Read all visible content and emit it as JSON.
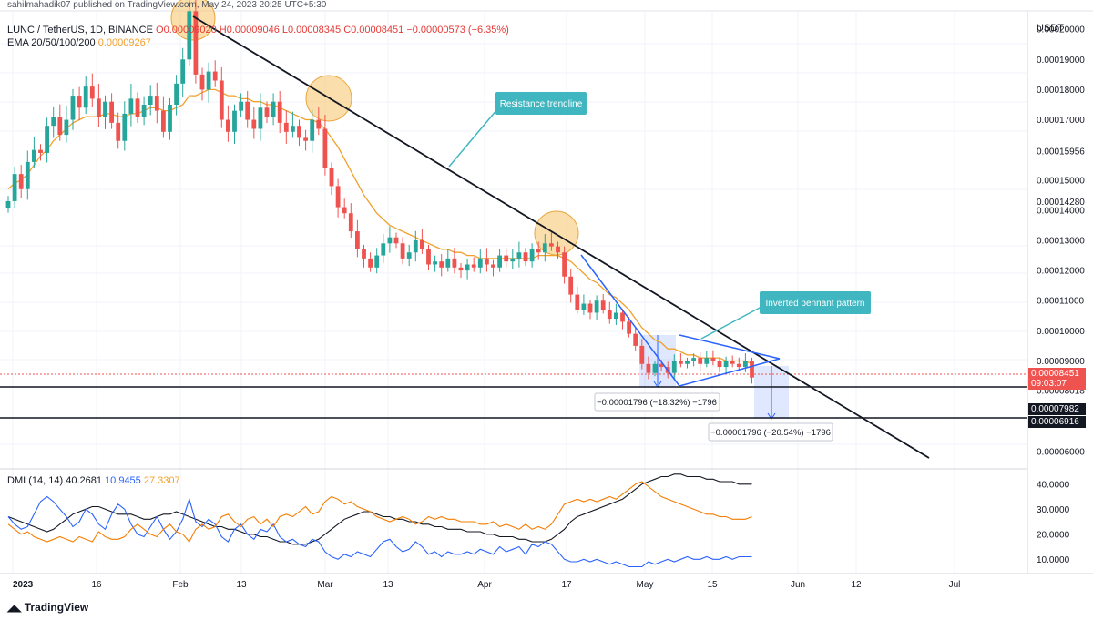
{
  "header": {
    "publisher": "sahilmahadik07 published on TradingView.com, May 24, 2023 20:25 UTC+5:30",
    "symbol": "LUNC / TetherUS, 1D, BINANCE",
    "open": "O0.00009020",
    "high": "H0.00009046",
    "low": "L0.00008345",
    "close": "C0.00008451",
    "change": "−0.00000573 (−6.35%)",
    "ema_label": "EMA 20/50/100/200",
    "ema_value": "0.00009267"
  },
  "axis_unit": "USDT",
  "price_tag": {
    "price": "0.00008451",
    "countdown": "09:03:07"
  },
  "level_tags": [
    "0.00007982",
    "0.00006916"
  ],
  "annotations": {
    "resistance": "Resistance trendline",
    "pennant": "Inverted pennant pattern",
    "measure1": "−0.00001796 (−18.32%) −1796",
    "measure2": "−0.00001796 (−20.54%) −1796"
  },
  "dmi": {
    "label": "DMI (14, 14)",
    "adx": "40.2681",
    "plus_di": "10.9455",
    "minus_di": "27.3307"
  },
  "footer_logo": "TradingView",
  "colors": {
    "up": "#26a69a",
    "down": "#ef5350",
    "ema": "#f2a02b",
    "adx": "#131722",
    "plus_di": "#2962ff",
    "minus_di": "#f57c00",
    "label_bg": "#3fb6c0"
  },
  "chart_data": {
    "type": "candlestick",
    "y_axis_ticks": [
      "0.00020000",
      "0.00019000",
      "0.00018000",
      "0.00017000",
      "0.00015956",
      "0.00015000",
      "0.00014280",
      "0.00014000",
      "0.00013000",
      "0.00012000",
      "0.00011000",
      "0.00010000",
      "0.00009000",
      "0.00008018",
      "0.00006000"
    ],
    "x_axis_ticks": [
      "2023",
      "16",
      "Feb",
      "13",
      "Mar",
      "13",
      "Apr",
      "17",
      "May",
      "15",
      "Jun",
      "12",
      "Jul"
    ],
    "dmi_axis_ticks": [
      "40.0000",
      "30.0000",
      "20.0000",
      "10.0000"
    ],
    "ylim": [
      5.45e-05,
      0.0002055
    ],
    "dmi_ylim": [
      5,
      45
    ],
    "closes": [
      0.000143,
      0.000152,
      0.000147,
      0.000156,
      0.00016,
      0.000159,
      0.000168,
      0.000171,
      0.000165,
      0.00017,
      0.000178,
      0.000174,
      0.000181,
      0.000177,
      0.000171,
      0.000176,
      0.000169,
      0.000163,
      0.000172,
      0.000177,
      0.000171,
      0.000175,
      0.000178,
      0.000173,
      0.000166,
      0.000175,
      0.000182,
      0.00019,
      0.000206,
      0.000185,
      0.00018,
      0.000186,
      0.000183,
      0.00017,
      0.000166,
      0.000173,
      0.000176,
      0.00017,
      0.000167,
      0.000174,
      0.000171,
      0.000176,
      0.000169,
      0.000166,
      0.000168,
      0.000164,
      0.000163,
      0.00017,
      0.000167,
      0.000154,
      0.000148,
      0.000141,
      0.000139,
      0.000133,
      0.000127,
      0.000124,
      0.000121,
      0.000125,
      0.000129,
      0.000131,
      0.000129,
      0.000124,
      0.000126,
      0.00013,
      0.000127,
      0.000122,
      0.000123,
      0.000121,
      0.000124,
      0.000121,
      0.00012,
      0.000122,
      0.000121,
      0.000124,
      0.000122,
      0.000121,
      0.000125,
      0.000123,
      0.000124,
      0.000126,
      0.000123,
      0.000127,
      0.000126,
      0.000129,
      0.000128,
      0.000126,
      0.000118,
      0.000112,
      0.000107,
      0.000109,
      0.000106,
      0.00011,
      0.000107,
      0.000104,
      0.000106,
      0.000103,
      9.9e-05,
      9.5e-05,
      8.9e-05,
      8.6e-05,
      8.9e-05,
      8.8e-05,
      8.6e-05,
      9e-05,
      8.9e-05,
      9e-05,
      9.1e-05,
      8.9e-05,
      9.1e-05,
      9e-05,
      8.8e-05,
      9e-05,
      8.9e-05,
      8.8e-05,
      9e-05,
      8.45e-05
    ],
    "ema20": [
      0.000147,
      0.000149,
      0.00015,
      0.000152,
      0.000155,
      0.000158,
      0.00016,
      0.000163,
      0.000165,
      0.000167,
      0.000169,
      0.00017,
      0.000171,
      0.000171,
      0.000171,
      0.000172,
      0.000172,
      0.000171,
      0.000171,
      0.000172,
      0.000172,
      0.000173,
      0.000174,
      0.000174,
      0.000173,
      0.000173,
      0.000174,
      0.000175,
      0.000178,
      0.000178,
      0.000179,
      0.00018,
      0.00018,
      0.000179,
      0.000178,
      0.000178,
      0.000177,
      0.000177,
      0.000176,
      0.000176,
      0.000175,
      0.000175,
      0.000174,
      0.000173,
      0.000172,
      0.000171,
      0.00017,
      0.00017,
      0.000169,
      0.000167,
      0.000164,
      0.000161,
      0.000157,
      0.000153,
      0.000149,
      0.000145,
      0.000142,
      0.000139,
      0.000137,
      0.000135,
      0.000134,
      0.000133,
      0.000132,
      0.000131,
      0.00013,
      0.000129,
      0.000128,
      0.000127,
      0.000127,
      0.000126,
      0.000126,
      0.000125,
      0.000125,
      0.000124,
      0.000124,
      0.000124,
      0.000124,
      0.000124,
      0.000124,
      0.000124,
      0.000124,
      0.000124,
      0.000125,
      0.000125,
      0.000125,
      0.000125,
      0.000124,
      0.000123,
      0.000121,
      0.000119,
      0.000117,
      0.000116,
      0.000114,
      0.000112,
      0.000111,
      0.000109,
      0.000107,
      0.000104,
      0.000101,
      9.9e-05,
      9.7e-05,
      9.6e-05,
      9.4e-05,
      9.4e-05,
      9.3e-05,
      9.2e-05,
      9.2e-05,
      9.1e-05,
      9.1e-05,
      9.1e-05,
      9.1e-05,
      9e-05,
      9e-05,
      9e-05,
      9e-05,
      8.9e-05
    ],
    "dmi_series": [
      {
        "name": "ADX",
        "values": [
          27,
          26,
          25,
          24,
          23,
          22,
          21,
          22,
          24,
          26,
          28,
          29,
          30,
          31,
          31,
          30,
          29,
          28,
          28,
          28,
          27,
          26,
          26,
          27,
          28,
          28,
          29,
          28,
          27,
          26,
          25,
          24,
          23,
          23,
          22,
          22,
          21,
          20,
          20,
          19,
          19,
          18,
          17,
          17,
          16,
          16,
          16,
          17,
          18,
          20,
          22,
          24,
          26,
          27,
          28,
          29,
          29,
          28,
          27,
          27,
          26,
          26,
          25,
          25,
          24,
          24,
          23,
          23,
          22,
          22,
          22,
          21,
          21,
          21,
          20,
          20,
          19,
          19,
          19,
          18,
          18,
          17,
          17,
          17,
          18,
          20,
          22,
          25,
          27,
          28,
          29,
          30,
          31,
          32,
          33,
          34,
          36,
          38,
          40,
          41,
          42,
          43,
          43,
          44,
          44,
          43,
          43,
          43,
          42,
          42,
          41,
          41,
          41,
          40,
          40,
          40
        ]
      },
      {
        "name": "+DI",
        "values": [
          27,
          24,
          22,
          23,
          28,
          33,
          35,
          33,
          30,
          27,
          23,
          25,
          30,
          28,
          24,
          22,
          28,
          32,
          30,
          24,
          20,
          19,
          23,
          27,
          22,
          18,
          21,
          26,
          34,
          25,
          23,
          26,
          24,
          19,
          17,
          22,
          24,
          20,
          18,
          22,
          21,
          24,
          19,
          17,
          18,
          16,
          15,
          18,
          17,
          13,
          11,
          10,
          12,
          11,
          13,
          12,
          11,
          14,
          17,
          18,
          15,
          13,
          14,
          17,
          15,
          12,
          13,
          11,
          13,
          12,
          12,
          13,
          12,
          14,
          13,
          12,
          15,
          13,
          14,
          15,
          12,
          16,
          15,
          17,
          16,
          13,
          10,
          9,
          9,
          10,
          9,
          10,
          9,
          8,
          9,
          8,
          7,
          7,
          7,
          9,
          8,
          9,
          10,
          9,
          10,
          11,
          10,
          10,
          11,
          10,
          10,
          11,
          10,
          11,
          11,
          11
        ]
      },
      {
        "name": "-DI",
        "values": [
          24,
          22,
          20,
          21,
          19,
          18,
          17,
          18,
          19,
          18,
          17,
          19,
          18,
          17,
          21,
          19,
          18,
          18,
          19,
          22,
          24,
          22,
          20,
          19,
          22,
          24,
          21,
          20,
          17,
          22,
          24,
          22,
          23,
          27,
          28,
          25,
          23,
          26,
          27,
          24,
          26,
          23,
          27,
          28,
          27,
          29,
          31,
          28,
          29,
          33,
          35,
          34,
          32,
          33,
          31,
          30,
          29,
          27,
          26,
          25,
          26,
          27,
          26,
          24,
          25,
          27,
          26,
          27,
          26,
          26,
          25,
          25,
          25,
          24,
          24,
          25,
          23,
          24,
          23,
          22,
          24,
          22,
          23,
          22,
          24,
          28,
          32,
          33,
          34,
          33,
          34,
          33,
          34,
          35,
          34,
          36,
          38,
          40,
          41,
          39,
          37,
          35,
          34,
          33,
          32,
          31,
          30,
          29,
          28,
          28,
          27,
          27,
          26,
          26,
          26,
          27
        ]
      }
    ]
  }
}
